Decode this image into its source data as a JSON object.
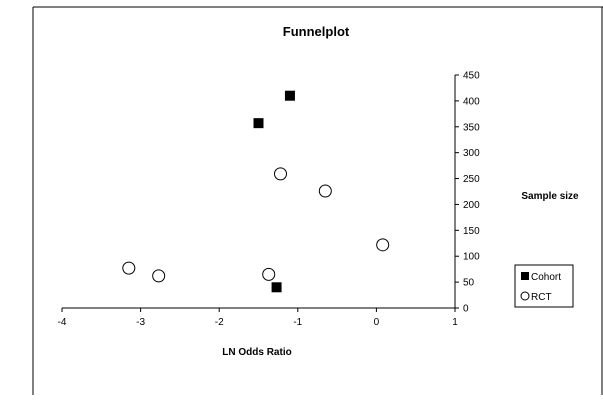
{
  "chart_data": {
    "type": "scatter",
    "title": "Funnelplot",
    "xlabel": "LN Odds Ratio",
    "ylabel": "Sample size",
    "xlim": [
      -4,
      1
    ],
    "ylim": [
      0,
      450
    ],
    "x_ticks": [
      "-4",
      "-3",
      "-2",
      "-1",
      "0",
      "1"
    ],
    "y_ticks": [
      "0",
      "50",
      "100",
      "150",
      "200",
      "250",
      "300",
      "350",
      "400",
      "450"
    ],
    "grid": false,
    "legend_position": "right",
    "series": [
      {
        "name": "Cohort",
        "marker": "filled-square",
        "color": "#000000",
        "points": [
          {
            "x": -1.1,
            "y": 410
          },
          {
            "x": -1.5,
            "y": 357
          },
          {
            "x": -1.27,
            "y": 40
          }
        ]
      },
      {
        "name": "RCT",
        "marker": "open-circle",
        "color": "#000000",
        "points": [
          {
            "x": -1.22,
            "y": 259
          },
          {
            "x": -0.65,
            "y": 226
          },
          {
            "x": 0.08,
            "y": 122
          },
          {
            "x": -3.15,
            "y": 77
          },
          {
            "x": -2.77,
            "y": 62
          },
          {
            "x": -1.37,
            "y": 65
          }
        ]
      }
    ]
  }
}
